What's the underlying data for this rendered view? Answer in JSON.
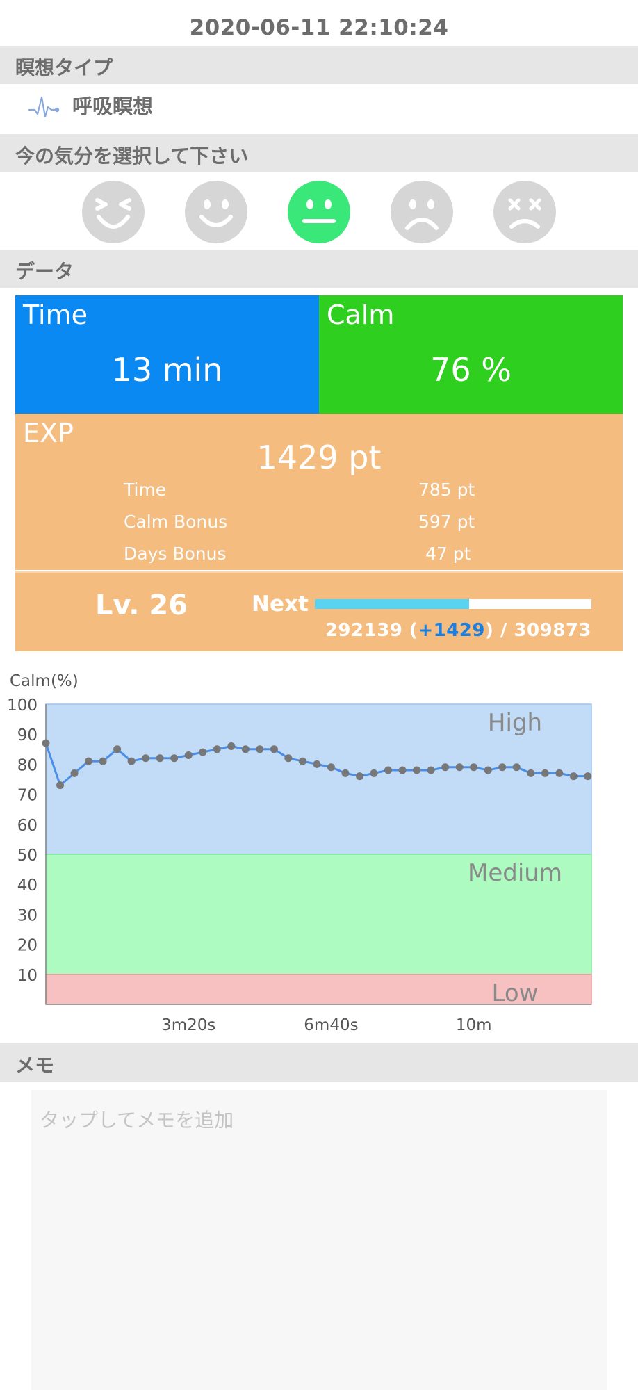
{
  "timestamp": "2020-06-11 22:10:24",
  "sections": {
    "meditation_type": "瞑想タイプ",
    "mood": "今の気分を選択して下さい",
    "data": "データ",
    "memo": "メモ"
  },
  "meditation": {
    "label": "呼吸瞑想",
    "icon": "pulse-icon"
  },
  "moods": [
    {
      "name": "laughing-face-icon",
      "selected": false
    },
    {
      "name": "smiling-face-icon",
      "selected": false
    },
    {
      "name": "neutral-face-icon",
      "selected": true
    },
    {
      "name": "sad-face-icon",
      "selected": false
    },
    {
      "name": "dizzy-face-icon",
      "selected": false
    }
  ],
  "stats": {
    "time_title": "Time",
    "time_value": "13 min",
    "calm_title": "Calm",
    "calm_value": "76 %",
    "exp_title": "EXP",
    "exp_total": "1429 pt",
    "breakdown": [
      {
        "label": "Time",
        "value": "785 pt"
      },
      {
        "label": "Calm Bonus",
        "value": "597 pt"
      },
      {
        "label": "Days Bonus",
        "value": "47 pt"
      }
    ],
    "level": "Lv. 26",
    "next_label": "Next",
    "progress_current": "292139 (",
    "progress_gain": "+1429",
    "progress_rest": ") / 309873",
    "progress_fraction": 0.557
  },
  "colors": {
    "time": "#0a89f2",
    "calm": "#2fcf1f",
    "exp": "#f5bc80",
    "selected_mood": "#3ae879",
    "high_zone": "#c2dcf8",
    "medium_zone": "#adfbc0",
    "low_zone": "#f7c1c1",
    "line": "#4a8ee8",
    "point": "#777777"
  },
  "chart_data": {
    "type": "line",
    "ylabel": "Calm(%)",
    "ylim": [
      0,
      100
    ],
    "yticks": [
      10,
      20,
      30,
      40,
      50,
      60,
      70,
      80,
      90,
      100
    ],
    "xlim_seconds": [
      0,
      765
    ],
    "xticks": [
      {
        "label": "3m20s",
        "value": 200
      },
      {
        "label": "6m40s",
        "value": 400
      },
      {
        "label": "10m",
        "value": 600
      }
    ],
    "zones": [
      {
        "name": "High",
        "from": 50,
        "to": 100
      },
      {
        "name": "Medium",
        "from": 10,
        "to": 50
      },
      {
        "name": "Low",
        "from": 0,
        "to": 10
      }
    ],
    "interval_seconds": 20,
    "values": [
      87,
      73,
      77,
      81,
      81,
      85,
      81,
      82,
      82,
      82,
      83,
      84,
      85,
      86,
      85,
      85,
      85,
      82,
      81,
      80,
      79,
      77,
      76,
      77,
      78,
      78,
      78,
      78,
      79,
      79,
      79,
      78,
      79,
      79,
      77,
      77,
      77,
      76,
      76
    ]
  },
  "memo": {
    "placeholder": "タップしてメモを追加"
  }
}
